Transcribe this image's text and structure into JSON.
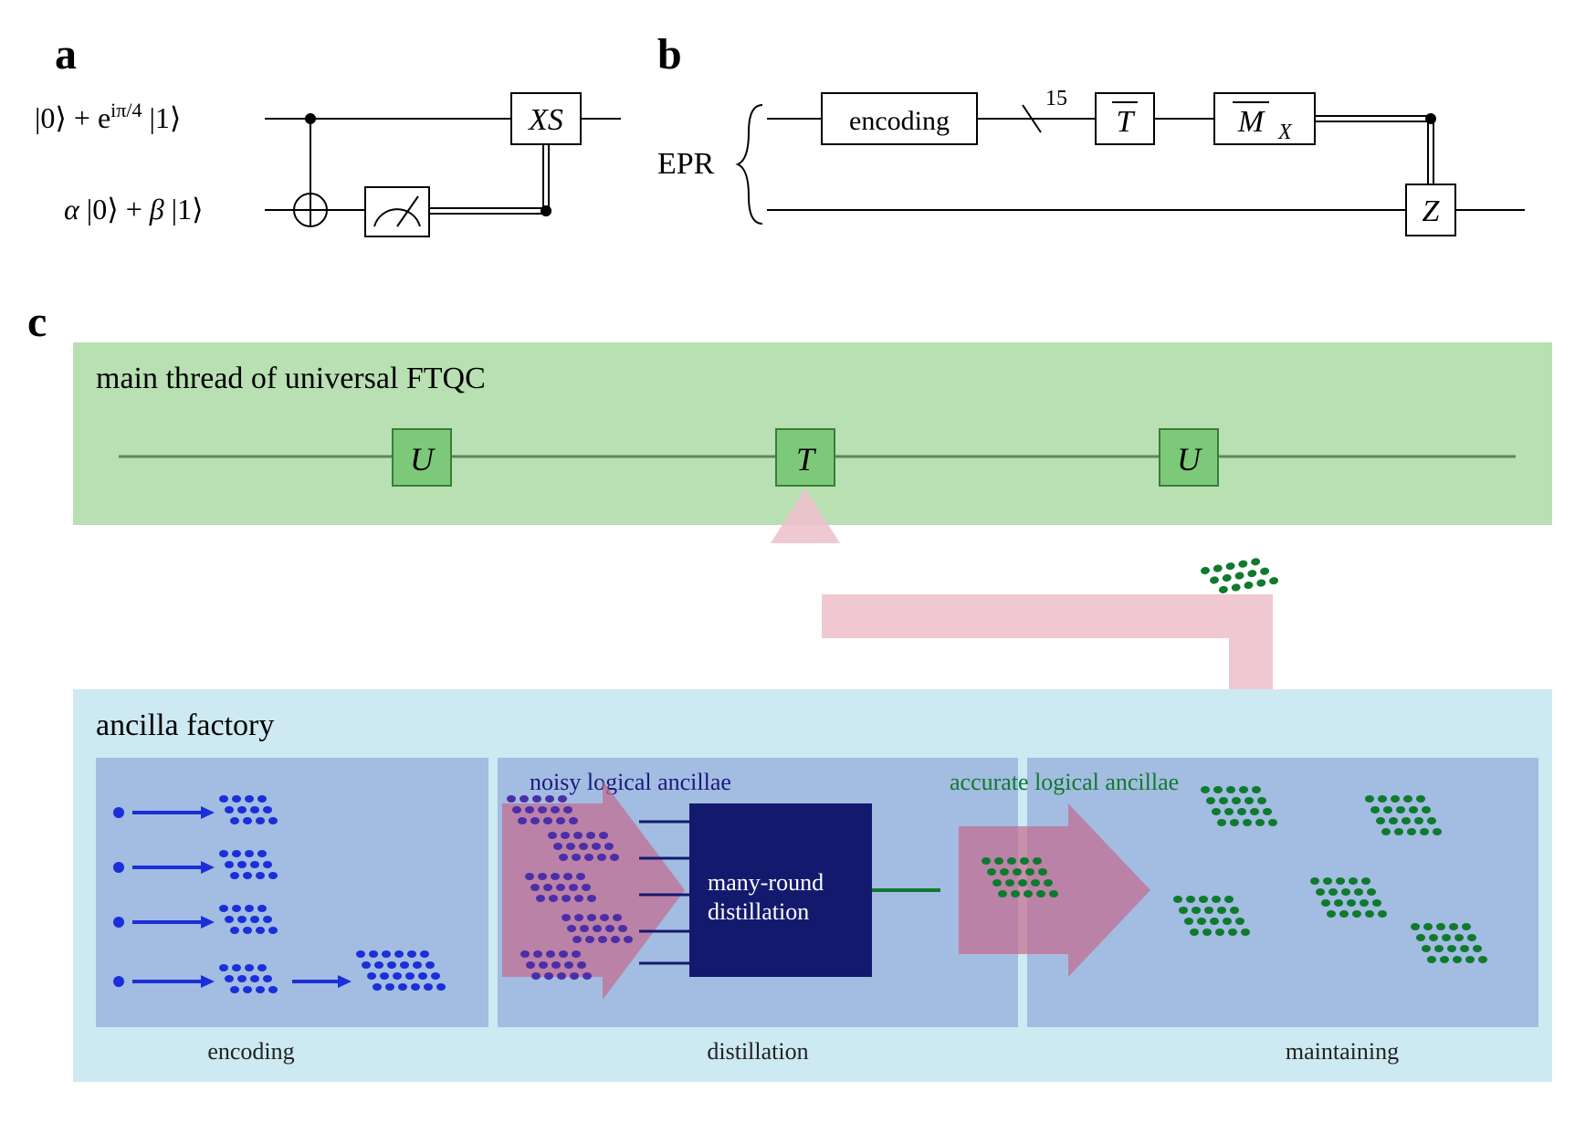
{
  "panels": {
    "a": {
      "label": "a"
    },
    "b": {
      "label": "b"
    },
    "c": {
      "label": "c"
    }
  },
  "panel_a": {
    "state_top": "|0⟩ + e^{iπ/4} |1⟩",
    "state_bottom": "α |0⟩ + β |1⟩",
    "gate_xs": "XS",
    "colors": {
      "line": "#000000",
      "box_stroke": "#000000",
      "box_fill": "#ffffff"
    },
    "line_width": 2
  },
  "panel_b": {
    "epr_label": "EPR",
    "encoding_label": "encoding",
    "slash_count": "15",
    "tbar_label": "T",
    "mx_label": "M",
    "mx_sub": "X",
    "z_label": "Z",
    "colors": {
      "line": "#000000",
      "box_stroke": "#000000",
      "box_fill": "#ffffff"
    },
    "line_width": 2
  },
  "panel_c": {
    "main_thread_title": "main thread of universal FTQC",
    "ancilla_title": "ancilla factory",
    "noisy_label": "noisy logical ancillae",
    "accurate_label": "accurate logical ancillae",
    "dist_label1": "many-round",
    "dist_label2": "distillation",
    "stage_encoding": "encoding",
    "stage_distillation": "distillation",
    "stage_maintaining": "maintaining",
    "gates": {
      "u1": "U",
      "t": "T",
      "u2": "U"
    },
    "colors": {
      "green_bg": "#b8e0b2",
      "cyan_bg": "#cde9f1",
      "blue_panel": "#a3bce2",
      "gate_fill": "#7dc97a",
      "gate_stroke": "#3a7d38",
      "wire": "#5a875a",
      "dist_fill": "#131a6e",
      "dist_text": "#ffffff",
      "pink": "#e6b5c2",
      "pink_dark": "#c4698e",
      "dot_blue": "#1a2fd8",
      "dot_purple": "#4b2ea8",
      "dot_green": "#0f7a2e",
      "noisy_text": "#1a1a7a",
      "accurate_text": "#0f7a2e",
      "stage_text": "#222222",
      "input_line": "#1a2fd8",
      "output_line": "#0f7a2e",
      "dist_input_line": "#131a6e"
    },
    "fonts": {
      "title": 34,
      "gate": 36,
      "label": 26,
      "dist": 26,
      "stage": 26
    }
  }
}
